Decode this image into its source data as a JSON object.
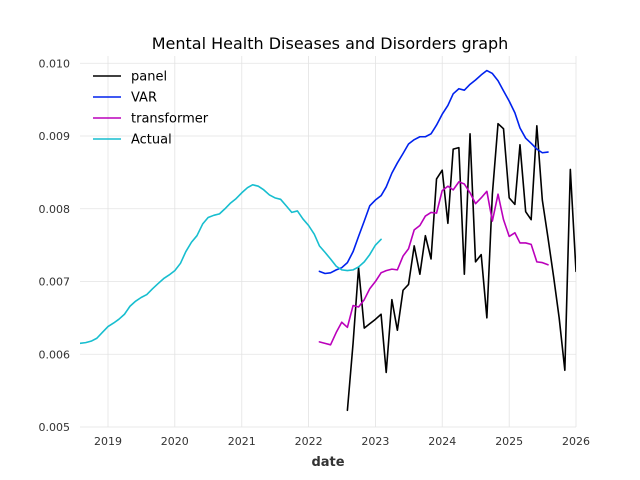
{
  "chart_data": {
    "type": "line",
    "title": "Mental Health Diseases and Disorders graph",
    "xlabel": "date",
    "ylabel": "",
    "x_type": "date",
    "xlim": [
      "2018-08-01",
      "2026-01-01"
    ],
    "ylim": [
      0.005,
      0.0101
    ],
    "grid": true,
    "legend_position": "top-left",
    "x_tick_labels": [
      "2019",
      "2020",
      "2021",
      "2022",
      "2023",
      "2024",
      "2025",
      "2026"
    ],
    "y_tick_labels": [
      "0.005",
      "0.006",
      "0.007",
      "0.008",
      "0.009",
      "0.010"
    ],
    "y_tick_values": [
      0.005,
      0.006,
      0.007,
      0.008,
      0.009,
      0.01
    ],
    "series": [
      {
        "name": "panel",
        "color": "#000000",
        "points": [
          [
            "2022-08-01",
            0.00523
          ],
          [
            "2022-09-01",
            0.00615
          ],
          [
            "2022-10-01",
            0.00719
          ],
          [
            "2022-11-01",
            0.00636
          ],
          [
            "2022-12-01",
            0.00642
          ],
          [
            "2023-01-01",
            0.00648
          ],
          [
            "2023-02-01",
            0.00655
          ],
          [
            "2023-03-01",
            0.00575
          ],
          [
            "2023-04-01",
            0.00675
          ],
          [
            "2023-05-01",
            0.00633
          ],
          [
            "2023-06-01",
            0.00688
          ],
          [
            "2023-07-01",
            0.00696
          ],
          [
            "2023-08-01",
            0.00749
          ],
          [
            "2023-09-01",
            0.0071
          ],
          [
            "2023-10-01",
            0.00763
          ],
          [
            "2023-11-01",
            0.00731
          ],
          [
            "2023-12-01",
            0.00841
          ],
          [
            "2024-01-01",
            0.00853
          ],
          [
            "2024-02-01",
            0.0078
          ],
          [
            "2024-03-01",
            0.00882
          ],
          [
            "2024-04-01",
            0.00884
          ],
          [
            "2024-05-01",
            0.0071
          ],
          [
            "2024-06-01",
            0.00903
          ],
          [
            "2024-07-01",
            0.00727
          ],
          [
            "2024-08-01",
            0.00737
          ],
          [
            "2024-09-01",
            0.0065
          ],
          [
            "2024-10-01",
            0.0082
          ],
          [
            "2024-11-01",
            0.00917
          ],
          [
            "2024-12-01",
            0.0091
          ],
          [
            "2025-01-01",
            0.00815
          ],
          [
            "2025-02-01",
            0.00806
          ],
          [
            "2025-03-01",
            0.00888
          ],
          [
            "2025-04-01",
            0.00796
          ],
          [
            "2025-05-01",
            0.00785
          ],
          [
            "2025-06-01",
            0.00914
          ],
          [
            "2025-07-01",
            0.00812
          ],
          [
            "2025-08-01",
            0.0076
          ],
          [
            "2025-09-01",
            0.00706
          ],
          [
            "2025-10-01",
            0.0065
          ],
          [
            "2025-11-01",
            0.00578
          ],
          [
            "2025-12-01",
            0.00854
          ],
          [
            "2026-01-01",
            0.00714
          ]
        ]
      },
      {
        "name": "VAR",
        "color": "#0022ee",
        "points": [
          [
            "2022-03-01",
            0.00714
          ],
          [
            "2022-04-01",
            0.00711
          ],
          [
            "2022-05-01",
            0.00712
          ],
          [
            "2022-06-01",
            0.00716
          ],
          [
            "2022-07-01",
            0.00719
          ],
          [
            "2022-08-01",
            0.00726
          ],
          [
            "2022-09-01",
            0.00741
          ],
          [
            "2022-10-01",
            0.00762
          ],
          [
            "2022-11-01",
            0.00783
          ],
          [
            "2022-12-01",
            0.00804
          ],
          [
            "2023-01-01",
            0.00812
          ],
          [
            "2023-02-01",
            0.00818
          ],
          [
            "2023-03-01",
            0.0083
          ],
          [
            "2023-04-01",
            0.00849
          ],
          [
            "2023-05-01",
            0.00863
          ],
          [
            "2023-06-01",
            0.00876
          ],
          [
            "2023-07-01",
            0.00889
          ],
          [
            "2023-08-01",
            0.00895
          ],
          [
            "2023-09-01",
            0.00899
          ],
          [
            "2023-10-01",
            0.00899
          ],
          [
            "2023-11-01",
            0.00903
          ],
          [
            "2023-12-01",
            0.00915
          ],
          [
            "2024-01-01",
            0.0093
          ],
          [
            "2024-02-01",
            0.00942
          ],
          [
            "2024-03-01",
            0.00958
          ],
          [
            "2024-04-01",
            0.00965
          ],
          [
            "2024-05-01",
            0.00963
          ],
          [
            "2024-06-01",
            0.00971
          ],
          [
            "2024-07-01",
            0.00977
          ],
          [
            "2024-08-01",
            0.00984
          ],
          [
            "2024-09-01",
            0.0099
          ],
          [
            "2024-10-01",
            0.00986
          ],
          [
            "2024-11-01",
            0.00976
          ],
          [
            "2024-12-01",
            0.00962
          ],
          [
            "2025-01-01",
            0.00948
          ],
          [
            "2025-02-01",
            0.00932
          ],
          [
            "2025-03-01",
            0.00911
          ],
          [
            "2025-04-01",
            0.00897
          ],
          [
            "2025-05-01",
            0.0089
          ],
          [
            "2025-06-01",
            0.00882
          ],
          [
            "2025-07-01",
            0.00877
          ],
          [
            "2025-08-01",
            0.00878
          ]
        ]
      },
      {
        "name": "transformer",
        "color": "#bb00bb",
        "points": [
          [
            "2022-03-01",
            0.00617
          ],
          [
            "2022-04-01",
            0.00615
          ],
          [
            "2022-05-01",
            0.00613
          ],
          [
            "2022-06-01",
            0.0063
          ],
          [
            "2022-07-01",
            0.00644
          ],
          [
            "2022-08-01",
            0.00637
          ],
          [
            "2022-09-01",
            0.00667
          ],
          [
            "2022-10-01",
            0.00665
          ],
          [
            "2022-11-01",
            0.00675
          ],
          [
            "2022-12-01",
            0.0069
          ],
          [
            "2023-01-01",
            0.007
          ],
          [
            "2023-02-01",
            0.00712
          ],
          [
            "2023-03-01",
            0.00715
          ],
          [
            "2023-04-01",
            0.00717
          ],
          [
            "2023-05-01",
            0.00716
          ],
          [
            "2023-06-01",
            0.00735
          ],
          [
            "2023-07-01",
            0.00745
          ],
          [
            "2023-08-01",
            0.00771
          ],
          [
            "2023-09-01",
            0.00777
          ],
          [
            "2023-10-01",
            0.0079
          ],
          [
            "2023-11-01",
            0.00795
          ],
          [
            "2023-12-01",
            0.00794
          ],
          [
            "2024-01-01",
            0.00825
          ],
          [
            "2024-02-01",
            0.00831
          ],
          [
            "2024-03-01",
            0.00826
          ],
          [
            "2024-04-01",
            0.00837
          ],
          [
            "2024-05-01",
            0.00834
          ],
          [
            "2024-06-01",
            0.00822
          ],
          [
            "2024-07-01",
            0.00807
          ],
          [
            "2024-08-01",
            0.00815
          ],
          [
            "2024-09-01",
            0.00824
          ],
          [
            "2024-10-01",
            0.00783
          ],
          [
            "2024-11-01",
            0.0082
          ],
          [
            "2024-12-01",
            0.00785
          ],
          [
            "2025-01-01",
            0.00762
          ],
          [
            "2025-02-01",
            0.00767
          ],
          [
            "2025-03-01",
            0.00753
          ],
          [
            "2025-04-01",
            0.00753
          ],
          [
            "2025-05-01",
            0.00751
          ],
          [
            "2025-06-01",
            0.00727
          ],
          [
            "2025-07-01",
            0.00726
          ],
          [
            "2025-08-01",
            0.00723
          ]
        ]
      },
      {
        "name": "Actual",
        "color": "#17becf",
        "points": [
          [
            "2018-08-01",
            0.00615
          ],
          [
            "2018-09-01",
            0.00616
          ],
          [
            "2018-10-01",
            0.00618
          ],
          [
            "2018-11-01",
            0.00622
          ],
          [
            "2018-12-01",
            0.0063
          ],
          [
            "2019-01-01",
            0.00638
          ],
          [
            "2019-02-01",
            0.00643
          ],
          [
            "2019-03-01",
            0.00648
          ],
          [
            "2019-04-01",
            0.00655
          ],
          [
            "2019-05-01",
            0.00666
          ],
          [
            "2019-06-01",
            0.00673
          ],
          [
            "2019-07-01",
            0.00678
          ],
          [
            "2019-08-01",
            0.00682
          ],
          [
            "2019-09-01",
            0.0069
          ],
          [
            "2019-10-01",
            0.00697
          ],
          [
            "2019-11-01",
            0.00704
          ],
          [
            "2019-12-01",
            0.00709
          ],
          [
            "2020-01-01",
            0.00715
          ],
          [
            "2020-02-01",
            0.00725
          ],
          [
            "2020-03-01",
            0.00741
          ],
          [
            "2020-04-01",
            0.00754
          ],
          [
            "2020-05-01",
            0.00763
          ],
          [
            "2020-06-01",
            0.00779
          ],
          [
            "2020-07-01",
            0.00788
          ],
          [
            "2020-08-01",
            0.00791
          ],
          [
            "2020-09-01",
            0.00793
          ],
          [
            "2020-10-01",
            0.008
          ],
          [
            "2020-11-01",
            0.00808
          ],
          [
            "2020-12-01",
            0.00814
          ],
          [
            "2021-01-01",
            0.00822
          ],
          [
            "2021-02-01",
            0.00829
          ],
          [
            "2021-03-01",
            0.00833
          ],
          [
            "2021-04-01",
            0.00831
          ],
          [
            "2021-05-01",
            0.00826
          ],
          [
            "2021-06-01",
            0.00819
          ],
          [
            "2021-07-01",
            0.00815
          ],
          [
            "2021-08-01",
            0.00813
          ],
          [
            "2021-09-01",
            0.00804
          ],
          [
            "2021-10-01",
            0.00795
          ],
          [
            "2021-11-01",
            0.00797
          ],
          [
            "2021-12-01",
            0.00786
          ],
          [
            "2022-01-01",
            0.00777
          ],
          [
            "2022-02-01",
            0.00765
          ],
          [
            "2022-03-01",
            0.00749
          ],
          [
            "2022-04-01",
            0.0074
          ],
          [
            "2022-05-01",
            0.00731
          ],
          [
            "2022-06-01",
            0.00721
          ],
          [
            "2022-07-01",
            0.00716
          ],
          [
            "2022-08-01",
            0.00715
          ],
          [
            "2022-09-01",
            0.00716
          ],
          [
            "2022-10-01",
            0.0072
          ],
          [
            "2022-11-01",
            0.00727
          ],
          [
            "2022-12-01",
            0.00737
          ],
          [
            "2023-01-01",
            0.0075
          ],
          [
            "2023-02-01",
            0.00758
          ]
        ]
      }
    ]
  }
}
